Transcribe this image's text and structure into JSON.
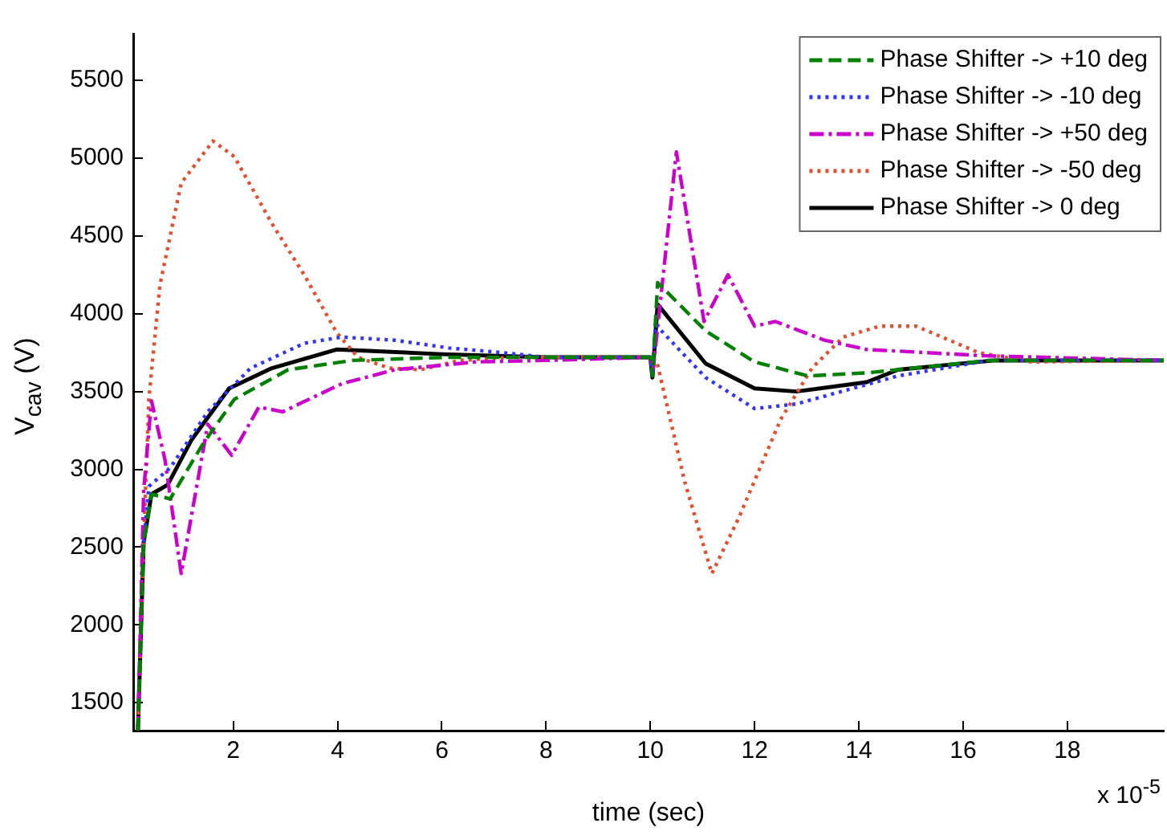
{
  "chart_data": {
    "type": "line",
    "xlabel": "time (sec)",
    "ylabel": "V$_{cav}$ (V)",
    "annotations": [
      "x 10$^{-5}$"
    ],
    "xlim": [
      0.08,
      19.85
    ],
    "xticks": [
      2,
      4,
      6,
      8,
      10,
      12,
      14,
      16,
      18
    ],
    "ylim": [
      1320,
      5800
    ],
    "yticks": [
      1500,
      2000,
      2500,
      3000,
      3500,
      4000,
      4500,
      5000,
      5500
    ],
    "legend": "top right",
    "grid": false,
    "marker": "none",
    "series": [
      {
        "name": "Phase Shifter -> +10 deg",
        "color": "#008000",
        "line_style": "dashed",
        "x": [
          0.17,
          0.28,
          0.43,
          0.79,
          1.41,
          2.02,
          3.05,
          4.28,
          6.13,
          8,
          10,
          10.04,
          10.14,
          11.06,
          12,
          13.03,
          14.15,
          14.75,
          16.5,
          19.85
        ],
        "values": [
          1320,
          2530,
          2840,
          2810,
          3160,
          3450,
          3640,
          3700,
          3720,
          3720,
          3720,
          3600,
          4200,
          3890,
          3690,
          3600,
          3620,
          3640,
          3700,
          3700
        ]
      },
      {
        "name": "Phase Shifter -> -10 deg",
        "color": "#3333ff",
        "line_style": "dotted",
        "x": [
          0.28,
          0.38,
          0.79,
          1.51,
          2.33,
          3.36,
          4.08,
          5.1,
          6.13,
          7.16,
          8,
          10,
          10.04,
          10.1,
          11.06,
          12,
          12.8,
          14.75,
          16.5,
          19.85
        ],
        "values": [
          2530,
          2890,
          3010,
          3370,
          3650,
          3810,
          3850,
          3830,
          3780,
          3750,
          3720,
          3720,
          3600,
          3930,
          3590,
          3390,
          3420,
          3600,
          3700,
          3700
        ]
      },
      {
        "name": "Phase Shifter -> +50 deg",
        "color": "#cc00cc",
        "line_style": "dashdot",
        "x": [
          0.17,
          0.28,
          0.43,
          0.69,
          1.0,
          1.51,
          1.97,
          2.49,
          2.95,
          4.08,
          5.1,
          6.65,
          8,
          10,
          10.04,
          10.5,
          11.03,
          11.49,
          12,
          12.4,
          13.34,
          14.15,
          14.75,
          16.4,
          19.85
        ],
        "values": [
          1320,
          2860,
          3440,
          3060,
          2330,
          3290,
          3090,
          3400,
          3370,
          3550,
          3640,
          3690,
          3700,
          3720,
          3600,
          5040,
          3950,
          4250,
          3920,
          3950,
          3830,
          3770,
          3760,
          3730,
          3700
        ]
      },
      {
        "name": "Phase Shifter -> -50 deg",
        "color": "#e05030",
        "line_style": "dotted",
        "x": [
          0.17,
          0.28,
          0.38,
          0.59,
          1.0,
          1.61,
          2.02,
          2.74,
          3.36,
          3.98,
          4.39,
          5.0,
          5.6,
          6.34,
          7.37,
          10,
          10.12,
          10.66,
          11.18,
          11.7,
          12.5,
          13.1,
          13.7,
          14.4,
          15.1,
          16.3,
          17.3,
          19.85
        ],
        "values": [
          1320,
          2530,
          3450,
          4180,
          4840,
          5110,
          5010,
          4580,
          4250,
          3880,
          3720,
          3650,
          3640,
          3700,
          3720,
          3720,
          3700,
          2920,
          2330,
          2690,
          3320,
          3650,
          3850,
          3920,
          3920,
          3750,
          3690,
          3700
        ]
      },
      {
        "name": "Phase Shifter -> 0 deg",
        "color": "#000000",
        "line_style": "solid",
        "x": [
          0.17,
          0.28,
          0.43,
          0.74,
          1.2,
          1.92,
          2.74,
          3.98,
          6,
          8,
          10,
          10.04,
          10.14,
          11.06,
          12,
          12.8,
          14.15,
          14.75,
          16.6,
          19.85
        ],
        "values": [
          1320,
          2530,
          2840,
          2900,
          3190,
          3520,
          3650,
          3770,
          3740,
          3720,
          3720,
          3590,
          4060,
          3680,
          3520,
          3500,
          3560,
          3640,
          3700,
          3700
        ]
      }
    ]
  }
}
